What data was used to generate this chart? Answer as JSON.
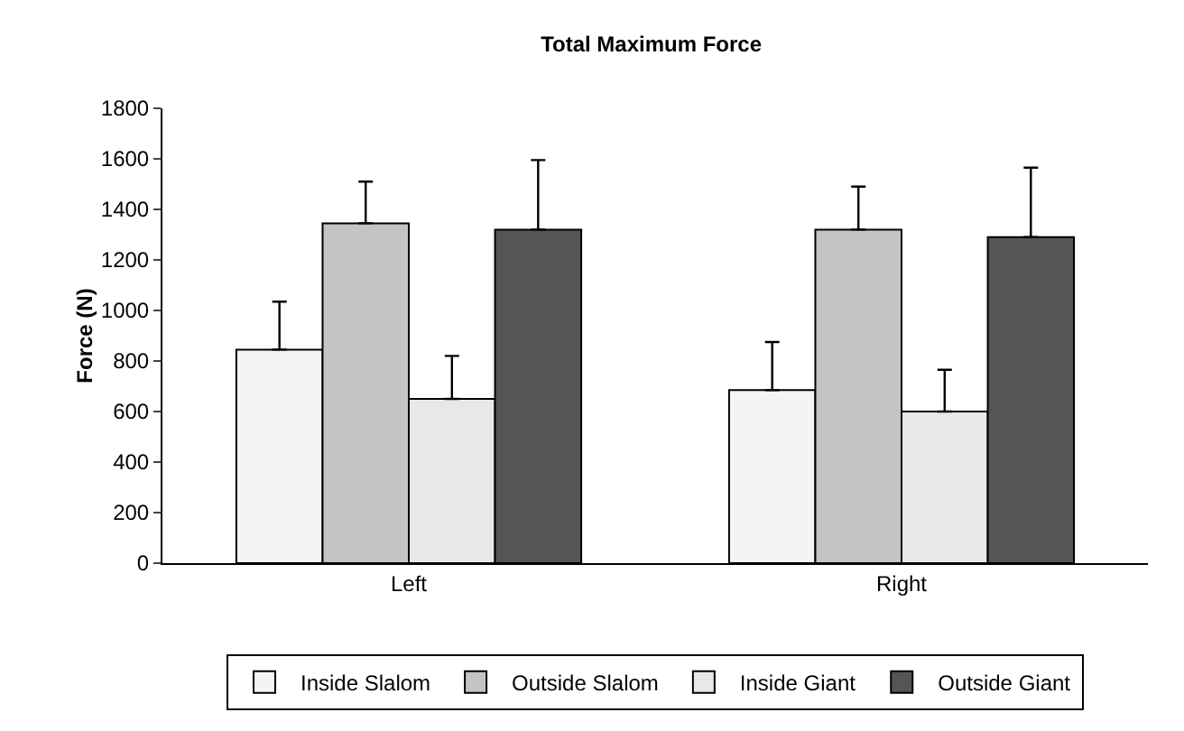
{
  "chart_data": {
    "type": "bar",
    "title": "Total Maximum Force",
    "ylabel": "Force (N)",
    "categories": [
      "Left",
      "Right"
    ],
    "series": [
      {
        "name": "Inside Slalom",
        "color": "#f4f4f4",
        "values": [
          845,
          685
        ],
        "errors": [
          [
            845,
            1035
          ],
          [
            685,
            875
          ]
        ]
      },
      {
        "name": "Outside Slalom",
        "color": "#c4c4c4",
        "values": [
          1345,
          1320
        ],
        "errors": [
          [
            1345,
            1510
          ],
          [
            1320,
            1490
          ]
        ]
      },
      {
        "name": "Inside Giant",
        "color": "#e8e8e8",
        "values": [
          650,
          600
        ],
        "errors": [
          [
            650,
            820
          ],
          [
            600,
            765
          ]
        ]
      },
      {
        "name": "Outside Giant",
        "color": "#555555",
        "values": [
          1320,
          1290
        ],
        "errors": [
          [
            1320,
            1595
          ],
          [
            1290,
            1565
          ]
        ]
      }
    ],
    "ylim": [
      0,
      1800
    ],
    "yticks": [
      0,
      200,
      400,
      600,
      800,
      1000,
      1200,
      1400,
      1600,
      1800
    ],
    "grid": false,
    "legend": "bottom"
  }
}
